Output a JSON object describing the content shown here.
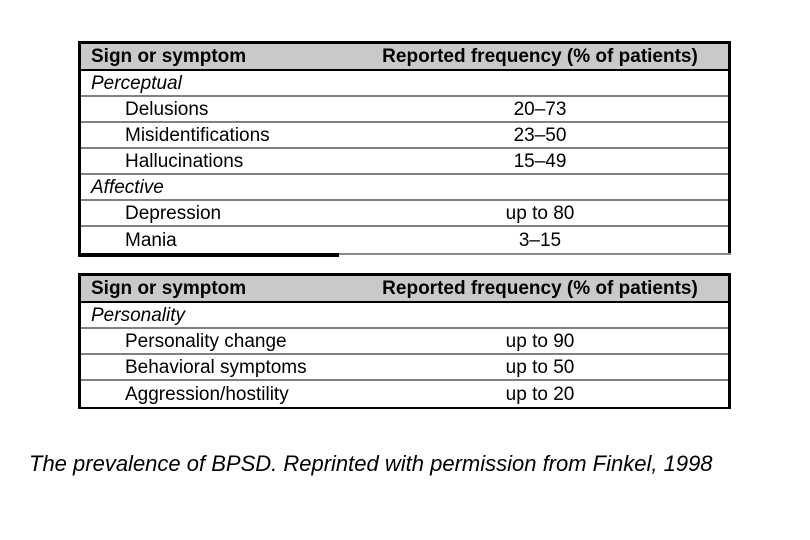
{
  "page": {
    "background": "#ffffff",
    "caption": "The prevalence of BPSD. Reprinted with permission from Finkel, 1998"
  },
  "colors": {
    "header_bg": "#c9c9c9",
    "outer_border": "#000000",
    "row_separator": "#818181",
    "text": "#000000"
  },
  "tables": [
    {
      "columns": [
        "Sign or symptom",
        "Reported frequency (% of patients)"
      ],
      "rows": [
        {
          "type": "category",
          "label": "Perceptual",
          "value": ""
        },
        {
          "type": "item",
          "label": "Delusions",
          "value": "20–73"
        },
        {
          "type": "item",
          "label": "Misidentifications",
          "value": "23–50"
        },
        {
          "type": "item",
          "label": "Hallucinations",
          "value": "15–49"
        },
        {
          "type": "category",
          "label": "Affective",
          "value": ""
        },
        {
          "type": "item",
          "label": "Depression",
          "value": "up to 80"
        },
        {
          "type": "item",
          "label": "Mania",
          "value": "3–15"
        }
      ]
    },
    {
      "columns": [
        "Sign or symptom",
        "Reported frequency (% of patients)"
      ],
      "rows": [
        {
          "type": "category",
          "label": "Personality",
          "value": ""
        },
        {
          "type": "item",
          "label": "Personality change",
          "value": "up to 90"
        },
        {
          "type": "item",
          "label": "Behavioral symptoms",
          "value": "up to 50"
        },
        {
          "type": "item",
          "label": "Aggression/hostility",
          "value": "up to 20"
        }
      ]
    }
  ]
}
